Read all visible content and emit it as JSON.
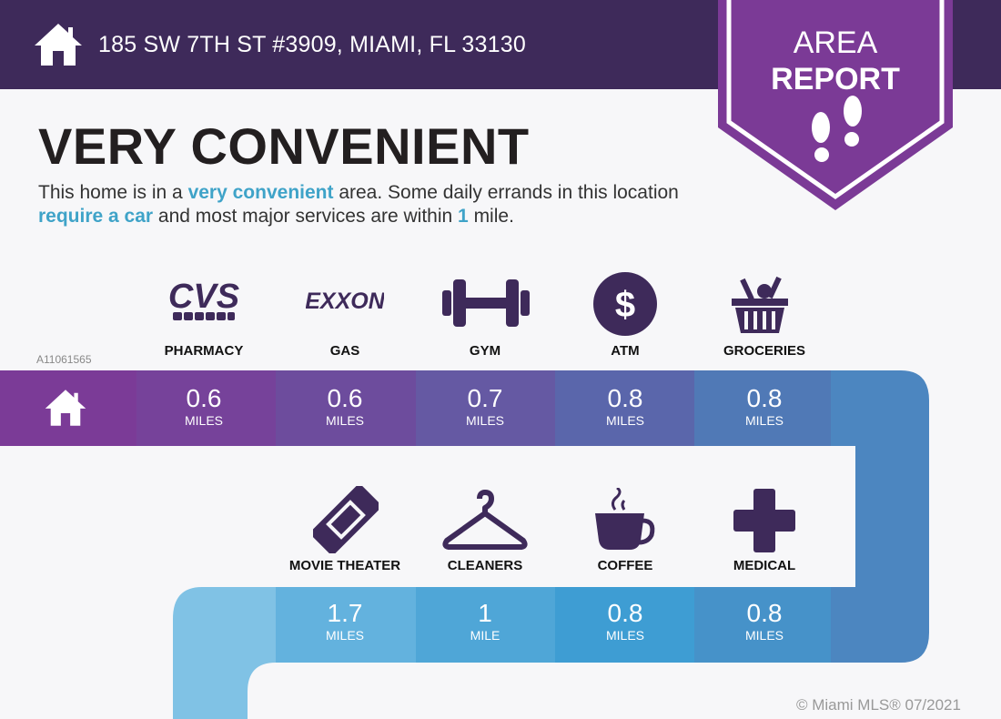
{
  "header": {
    "address": "185 SW 7TH ST #3909, MIAMI, FL 33130",
    "icon": "home-icon"
  },
  "badge": {
    "line1": "AREA",
    "line2": "REPORT",
    "icon": "footprints-icon"
  },
  "main": {
    "title": "VERY CONVENIENT",
    "desc": {
      "p1": "This home is in a ",
      "h1": "very convenient",
      "p2": " area. Some daily errands in this location ",
      "h2": "require a car",
      "p3": " and most major services are within ",
      "h3": "1",
      "p4": " mile."
    }
  },
  "watermark": "A11061565",
  "row1": [
    {
      "label": "PHARMACY",
      "value": "0.6",
      "unit": "MILES",
      "icon": "cvs-pharmacy-logo",
      "logo": "CVS pharmacy"
    },
    {
      "label": "GAS",
      "value": "0.6",
      "unit": "MILES",
      "icon": "exxon-logo",
      "logo": "EXXON"
    },
    {
      "label": "GYM",
      "value": "0.7",
      "unit": "MILES",
      "icon": "dumbbell-icon"
    },
    {
      "label": "ATM",
      "value": "0.8",
      "unit": "MILES",
      "icon": "dollar-icon"
    },
    {
      "label": "GROCERIES",
      "value": "0.8",
      "unit": "MILES",
      "icon": "basket-icon"
    }
  ],
  "row2": [
    {
      "label": "MOVIE THEATER",
      "value": "1.7",
      "unit": "MILES",
      "icon": "ticket-icon"
    },
    {
      "label": "CLEANERS",
      "value": "1",
      "unit": "MILE",
      "icon": "hanger-icon"
    },
    {
      "label": "COFFEE",
      "value": "0.8",
      "unit": "MILES",
      "icon": "coffee-icon"
    },
    {
      "label": "MEDICAL",
      "value": "0.8",
      "unit": "MILES",
      "icon": "medical-cross-icon"
    }
  ],
  "copyright": "© Miami MLS® 07/2021",
  "colors": {
    "header": "#3e2a5a",
    "badge": "#7b3a96",
    "icon": "#3e2a5a",
    "accent": "#3fa3c8"
  }
}
